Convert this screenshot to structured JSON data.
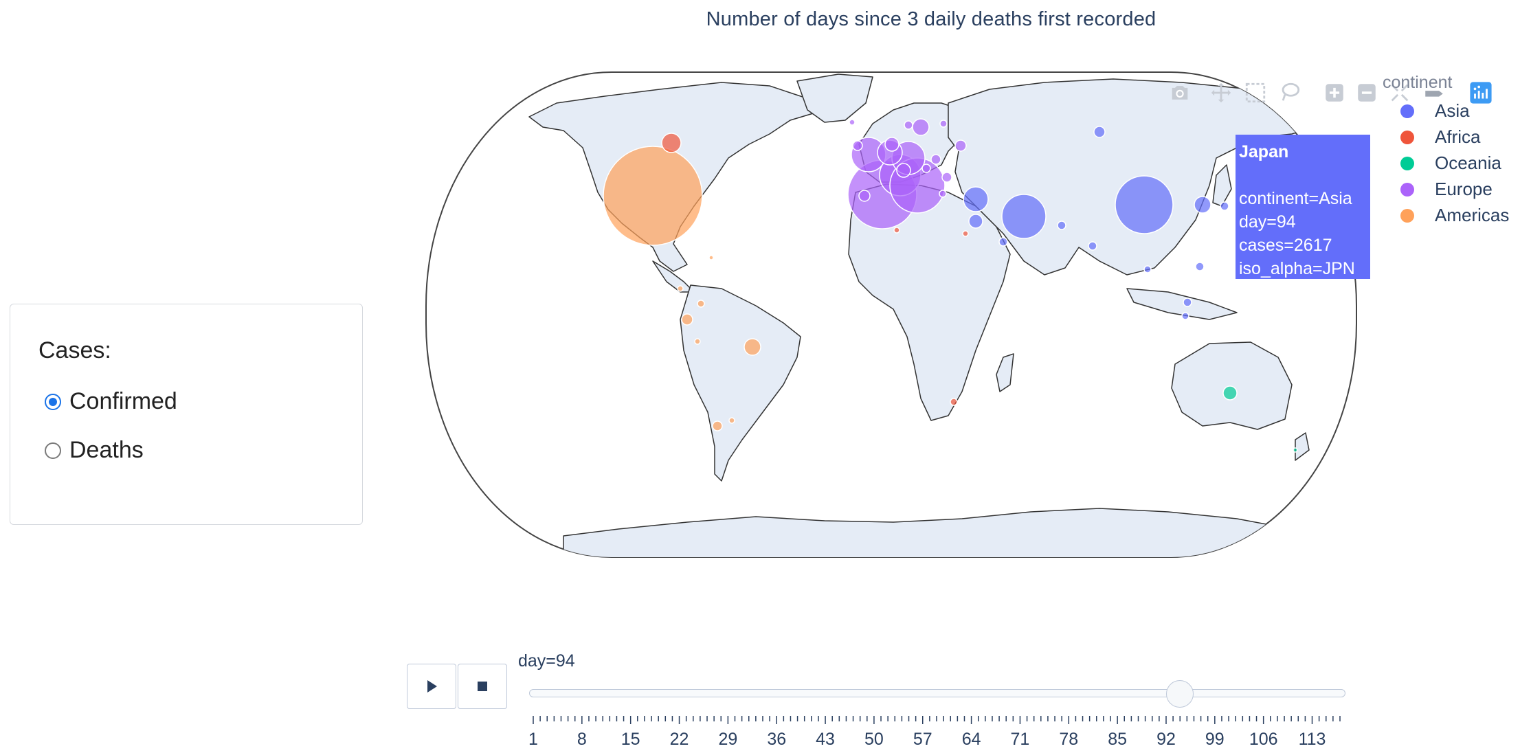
{
  "chart_title": "Number of days since 3 daily deaths first recorded",
  "cases_panel": {
    "title": "Cases:",
    "options": [
      {
        "label": "Confirmed",
        "checked": true
      },
      {
        "label": "Deaths",
        "checked": false
      }
    ]
  },
  "modebar": {
    "icons": [
      "camera-icon",
      "pan-icon",
      "box-select-icon",
      "lasso-icon",
      "zoom-in-icon",
      "zoom-out-icon",
      "reset-icon",
      "hover-closest-icon",
      "plotly-logo-icon"
    ]
  },
  "legend": {
    "title": "continent",
    "items": [
      {
        "label": "Asia",
        "color": "#636efa"
      },
      {
        "label": "Africa",
        "color": "#ef553b"
      },
      {
        "label": "Oceania",
        "color": "#00cc96"
      },
      {
        "label": "Europe",
        "color": "#ab63fa"
      },
      {
        "label": "Americas",
        "color": "#ffa15a"
      }
    ]
  },
  "tooltip": {
    "name": "Japan",
    "lines": [
      "continent=Asia",
      "day=94",
      "cases=2617",
      "iso_alpha=JPN"
    ]
  },
  "slider": {
    "current_label": "day=94",
    "min": 1,
    "max": 117,
    "value": 94,
    "ticks": [
      "1",
      "8",
      "15",
      "22",
      "29",
      "36",
      "43",
      "50",
      "57",
      "64",
      "71",
      "78",
      "85",
      "92",
      "99",
      "106",
      "113"
    ]
  },
  "chart_data": {
    "type": "scatter-geo",
    "projection": "natural earth",
    "frame": "day=94",
    "highlighted_point": {
      "name": "Japan",
      "continent": "Asia",
      "day": 94,
      "cases": 2617,
      "iso_alpha": "JPN"
    }
  }
}
